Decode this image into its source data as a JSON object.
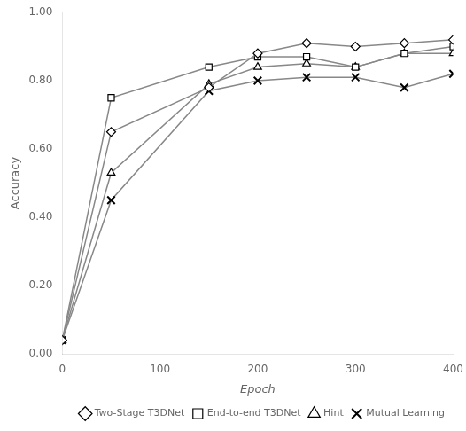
{
  "chart_data": {
    "type": "line",
    "x": [
      0,
      50,
      150,
      200,
      250,
      300,
      350,
      400
    ],
    "series": [
      {
        "name": "Two-Stage T3DNet",
        "color": "#888888",
        "marker": "diamond",
        "values": [
          0.04,
          0.65,
          0.78,
          0.88,
          0.91,
          0.9,
          0.91,
          0.92
        ]
      },
      {
        "name": "End-to-end T3DNet",
        "color": "#888888",
        "marker": "square",
        "values": [
          0.04,
          0.75,
          0.84,
          0.87,
          0.87,
          0.84,
          0.88,
          0.9
        ]
      },
      {
        "name": "Hint",
        "color": "#888888",
        "marker": "triangle",
        "values": [
          0.04,
          0.53,
          0.79,
          0.84,
          0.85,
          0.84,
          0.88,
          0.88
        ]
      },
      {
        "name": "Mutual Learning",
        "color": "#888888",
        "marker": "x",
        "values": [
          0.04,
          0.45,
          0.77,
          0.8,
          0.81,
          0.81,
          0.78,
          0.82
        ]
      }
    ],
    "xlabel": "Epoch",
    "ylabel": "Accuracy",
    "xlim": [
      0,
      400
    ],
    "ylim": [
      0.0,
      1.0
    ],
    "xticks": [
      0,
      100,
      200,
      300,
      400
    ],
    "yticks": [
      {
        "value": 0.0,
        "label": "0.00"
      },
      {
        "value": 0.2,
        "label": "0.20"
      },
      {
        "value": 0.4,
        "label": "0.40"
      },
      {
        "value": 0.6,
        "label": "0.60"
      },
      {
        "value": 0.8,
        "label": "0.80"
      },
      {
        "value": 1.0,
        "label": "1.00"
      }
    ],
    "grid": false,
    "legend": "lower right"
  }
}
